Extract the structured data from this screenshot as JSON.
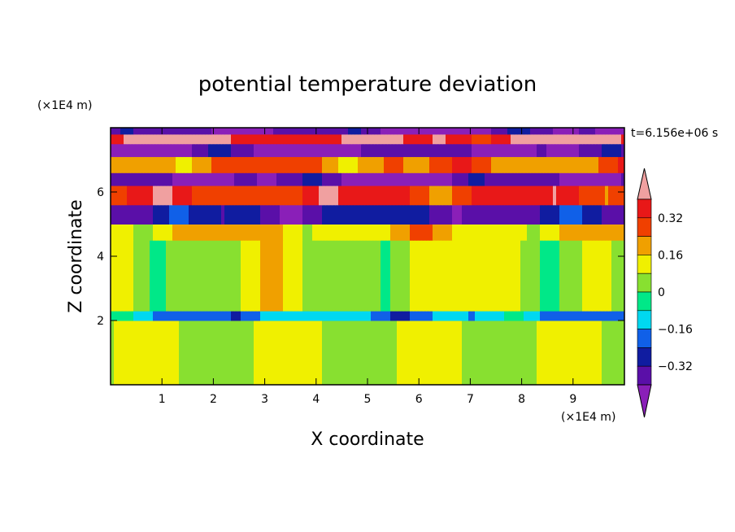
{
  "chart_data": {
    "type": "heatmap",
    "title": "potential temperature deviation",
    "xlabel": "X coordinate",
    "ylabel": "Z coordinate",
    "x_unit": "(×1E4 m)",
    "y_unit": "(×1E4 m)",
    "time_label": "t=6.156e+06 s",
    "xlim": [
      0,
      10
    ],
    "ylim": [
      0,
      8
    ],
    "x_ticks": [
      "1",
      "2",
      "3",
      "4",
      "5",
      "6",
      "7",
      "8",
      "9"
    ],
    "y_ticks": [
      "2",
      "4",
      "6"
    ],
    "x_tick_values": [
      1,
      2,
      3,
      4,
      5,
      6,
      7,
      8,
      9
    ],
    "y_tick_values": [
      2,
      4,
      6
    ],
    "colorbar": {
      "levels": [
        -0.4,
        -0.32,
        -0.24,
        -0.16,
        -0.08,
        0,
        0.08,
        0.16,
        0.24,
        0.32,
        0.4
      ],
      "tick_labels": [
        "0.32",
        "0.16",
        "0",
        "−0.16",
        "−0.32"
      ],
      "tick_values": [
        0.32,
        0.16,
        0,
        -0.16,
        -0.32
      ],
      "colors": [
        "#8a1fb8",
        "#5a0fa8",
        "#101ca0",
        "#1060e8",
        "#00d8f0",
        "#00e888",
        "#88e030",
        "#f0f000",
        "#f0a000",
        "#f04000",
        "#e81818",
        "#f0a0a0"
      ],
      "extend": "both"
    },
    "bands": [
      {
        "zmin": 0.0,
        "zmax": 2.0,
        "value": 0.0,
        "note": "lower layer alternating 0 and +0.08"
      },
      {
        "zmin": 2.0,
        "zmax": 2.3,
        "value": -0.16
      },
      {
        "zmin": 2.3,
        "zmax": 4.5,
        "value": 0.08
      },
      {
        "zmin": 4.5,
        "zmax": 5.0,
        "value": 0.16
      },
      {
        "zmin": 5.0,
        "zmax": 5.6,
        "value": -0.32
      },
      {
        "zmin": 5.6,
        "zmax": 6.2,
        "value": 0.32
      },
      {
        "zmin": 6.2,
        "zmax": 6.6,
        "value": -0.4
      },
      {
        "zmin": 6.6,
        "zmax": 7.1,
        "value": 0.24
      },
      {
        "zmin": 7.1,
        "zmax": 7.5,
        "value": -0.4
      },
      {
        "zmin": 7.5,
        "zmax": 7.8,
        "value": 0.4
      },
      {
        "zmin": 7.8,
        "zmax": 8.0,
        "value": -0.4
      }
    ]
  }
}
